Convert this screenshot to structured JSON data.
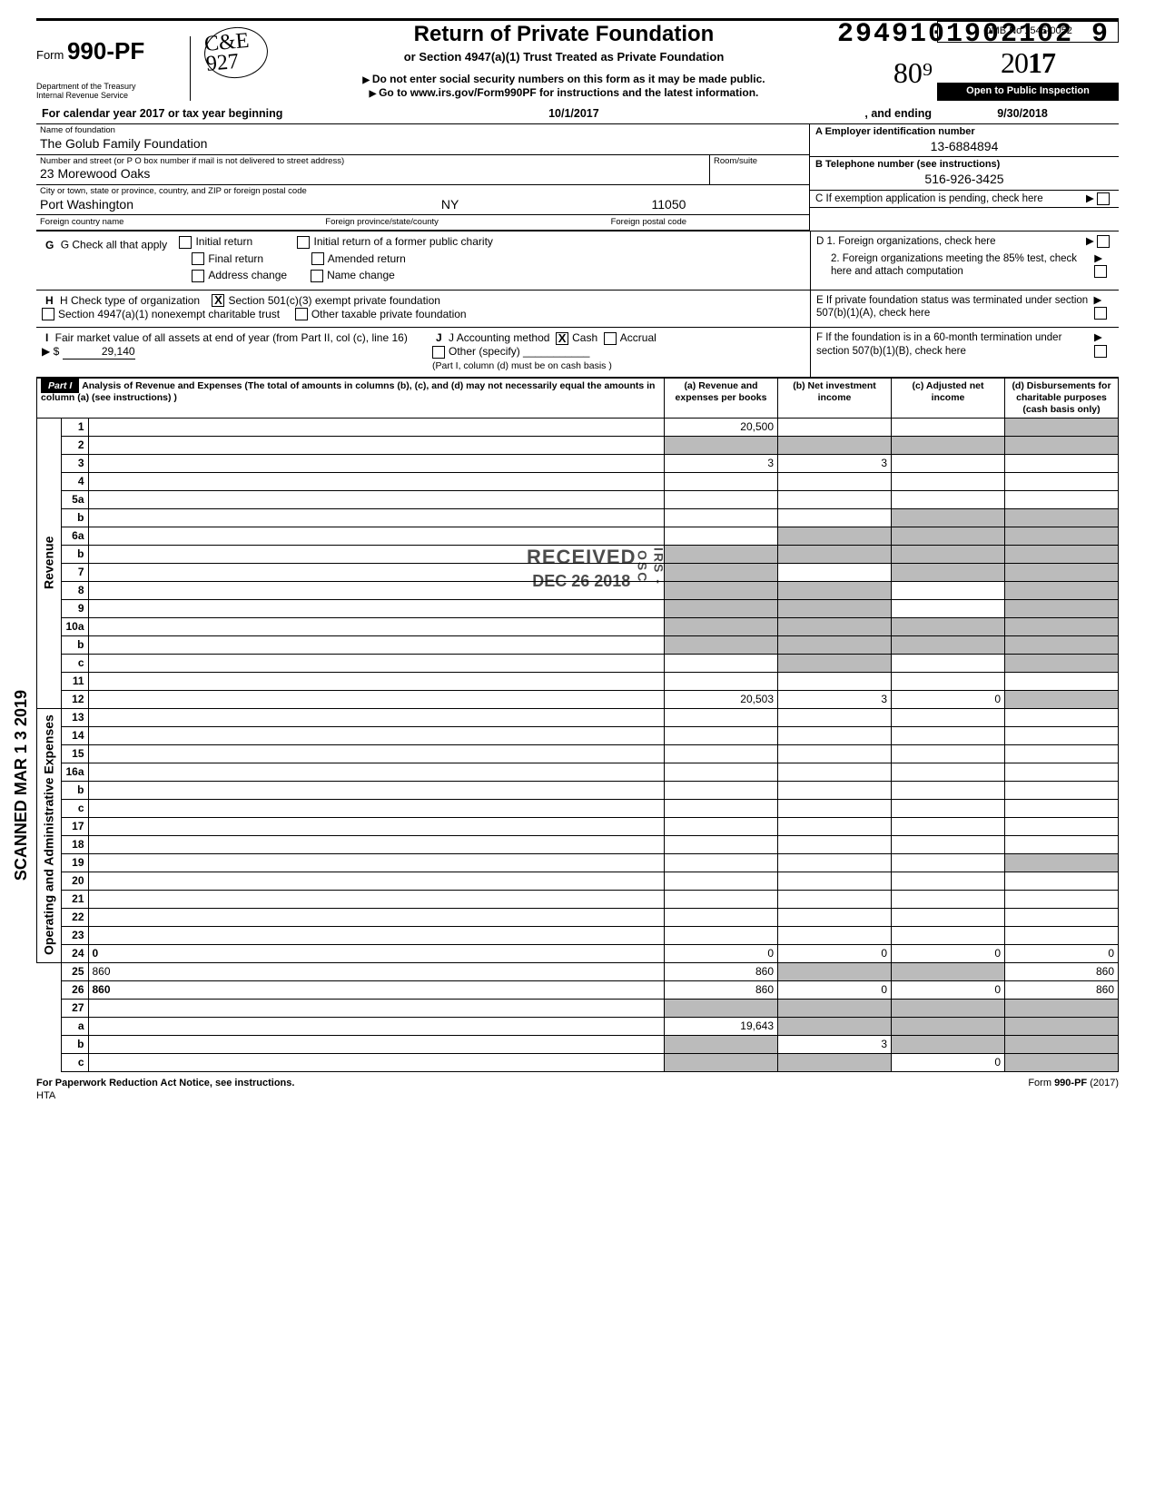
{
  "doc_number": "2949101902102  9",
  "form": {
    "prefix": "Form",
    "number": "990-PF",
    "dept_line1": "Department of the Treasury",
    "dept_line2": "Internal Revenue Service"
  },
  "title": {
    "main": "Return of Private Foundation",
    "sub1": "or Section 4947(a)(1) Trust Treated as Private Foundation",
    "sub2": "Do not enter social security numbers on this form as it may be made public.",
    "sub3": "Go to www.irs.gov/Form990PF for instructions and the latest information."
  },
  "year_block": {
    "omb": "OMB No 1545-0052",
    "year_outline": "20",
    "year_bold": "17",
    "open": "Open to Public Inspection"
  },
  "handwritten_initials": "C&E\n927",
  "handwritten_amount": "80⁹",
  "calendar_line": {
    "prefix": "For calendar year 2017 or tax year beginning",
    "begin": "10/1/2017",
    "mid": ", and ending",
    "end": "9/30/2018"
  },
  "name_of_foundation_label": "Name of foundation",
  "name_of_foundation": "The Golub Family Foundation",
  "addr_label": "Number and street (or P O  box number if mail is not delivered to street address)",
  "addr": "23 Morewood Oaks",
  "room_label": "Room/suite",
  "city_label": "City or town, state or province, country, and ZIP or foreign postal code",
  "city": "Port Washington",
  "state": "NY",
  "zip": "11050",
  "foreign_country_label": "Foreign country name",
  "foreign_province_label": "Foreign province/state/county",
  "foreign_postal_label": "Foreign postal code",
  "A_label": "A  Employer identification number",
  "A_value": "13-6884894",
  "B_label": "B  Telephone number (see instructions)",
  "B_value": "516-926-3425",
  "C_label": "C  If exemption application is pending, check here",
  "G_label": "G   Check all that apply",
  "G_opts": [
    "Initial return",
    "Final return",
    "Address change",
    "Initial return of a former public charity",
    "Amended return",
    "Name change"
  ],
  "H_label": "H   Check type of organization",
  "H_opts": [
    "Section 501(c)(3) exempt private foundation",
    "Section 4947(a)(1) nonexempt charitable trust",
    "Other taxable private foundation"
  ],
  "I_label1": "I    Fair market value of all assets at end of year (from Part II, col (c), line 16) ▶ $",
  "I_value": "29,140",
  "J_label": "J    Accounting method",
  "J_opts": [
    "Cash",
    "Accrual",
    "Other (specify)"
  ],
  "J_note": "(Part I, column (d) must be on cash basis )",
  "D1": "D  1. Foreign organizations, check here",
  "D2": "2. Foreign organizations meeting the 85% test, check here and attach computation",
  "E": "E  If private foundation status was terminated under section 507(b)(1)(A), check here",
  "F": "F  If the foundation is in a 60-month termination under section 507(b)(1)(B), check here",
  "part1_title": "Analysis of Revenue and Expenses (The total of amounts in columns (b), (c), and (d) may not necessarily equal the amounts in column (a) (see instructions) )",
  "cols": {
    "a": "(a) Revenue and expenses per books",
    "b": "(b) Net investment income",
    "c": "(c) Adjusted net income",
    "d": "(d) Disbursements for charitable purposes (cash basis only)"
  },
  "revenue_label": "Revenue",
  "opex_label": "Operating and Administrative Expenses",
  "rows": [
    {
      "n": "1",
      "d": "",
      "a": "20,500",
      "b": "",
      "c": "",
      "sd": true
    },
    {
      "n": "2",
      "d": "",
      "a": "",
      "b": "",
      "c": "",
      "shade_all": true
    },
    {
      "n": "3",
      "d": "",
      "a": "3",
      "b": "3",
      "c": ""
    },
    {
      "n": "4",
      "d": "",
      "a": "",
      "b": "",
      "c": ""
    },
    {
      "n": "5a",
      "d": "",
      "a": "",
      "b": "",
      "c": ""
    },
    {
      "n": "b",
      "d": "",
      "a": "",
      "b": "",
      "c": "",
      "sc": true,
      "sd": true
    },
    {
      "n": "6a",
      "d": "",
      "a": "",
      "b": "",
      "c": "",
      "sb": true,
      "sc": true,
      "sd": true
    },
    {
      "n": "b",
      "d": "",
      "a": "",
      "b": "",
      "c": "",
      "shade_all": true
    },
    {
      "n": "7",
      "d": "",
      "a": "",
      "b": "",
      "c": "",
      "sa": true,
      "sc": true,
      "sd": true
    },
    {
      "n": "8",
      "d": "",
      "a": "",
      "b": "",
      "c": "",
      "sa": true,
      "sb": true,
      "sd": true
    },
    {
      "n": "9",
      "d": "",
      "a": "",
      "b": "",
      "c": "",
      "sa": true,
      "sb": true,
      "sd": true
    },
    {
      "n": "10a",
      "d": "",
      "a": "",
      "b": "",
      "c": "",
      "shade_all": true
    },
    {
      "n": "b",
      "d": "",
      "a": "",
      "b": "",
      "c": "",
      "shade_all": true
    },
    {
      "n": "c",
      "d": "",
      "a": "",
      "b": "",
      "c": "",
      "sb": true,
      "sd": true
    },
    {
      "n": "11",
      "d": "",
      "a": "",
      "b": "",
      "c": ""
    },
    {
      "n": "12",
      "d": "",
      "a": "20,503",
      "b": "3",
      "c": "0",
      "bold": true,
      "sd": true
    },
    {
      "n": "13",
      "d": "",
      "a": "",
      "b": "",
      "c": ""
    },
    {
      "n": "14",
      "d": "",
      "a": "",
      "b": "",
      "c": ""
    },
    {
      "n": "15",
      "d": "",
      "a": "",
      "b": "",
      "c": ""
    },
    {
      "n": "16a",
      "d": "",
      "a": "",
      "b": "",
      "c": ""
    },
    {
      "n": "b",
      "d": "",
      "a": "",
      "b": "",
      "c": ""
    },
    {
      "n": "c",
      "d": "",
      "a": "",
      "b": "",
      "c": ""
    },
    {
      "n": "17",
      "d": "",
      "a": "",
      "b": "",
      "c": ""
    },
    {
      "n": "18",
      "d": "",
      "a": "",
      "b": "",
      "c": ""
    },
    {
      "n": "19",
      "d": "",
      "a": "",
      "b": "",
      "c": "",
      "sd": true
    },
    {
      "n": "20",
      "d": "",
      "a": "",
      "b": "",
      "c": ""
    },
    {
      "n": "21",
      "d": "",
      "a": "",
      "b": "",
      "c": ""
    },
    {
      "n": "22",
      "d": "",
      "a": "",
      "b": "",
      "c": ""
    },
    {
      "n": "23",
      "d": "",
      "a": "",
      "b": "",
      "c": ""
    },
    {
      "n": "24",
      "d": "0",
      "a": "0",
      "b": "0",
      "c": "0",
      "bold": true
    },
    {
      "n": "25",
      "d": "860",
      "a": "860",
      "b": "",
      "c": "",
      "sb": true,
      "sc": true
    },
    {
      "n": "26",
      "d": "860",
      "a": "860",
      "b": "0",
      "c": "0",
      "bold": true
    },
    {
      "n": "27",
      "d": "",
      "a": "",
      "b": "",
      "c": "",
      "shade_all": true
    },
    {
      "n": "a",
      "d": "",
      "a": "19,643",
      "b": "",
      "c": "",
      "bold": true,
      "sb": true,
      "sc": true,
      "sd": true
    },
    {
      "n": "b",
      "d": "",
      "a": "",
      "b": "3",
      "c": "",
      "bold": true,
      "sa": true,
      "sc": true,
      "sd": true
    },
    {
      "n": "c",
      "d": "",
      "a": "",
      "b": "",
      "c": "0",
      "bold": true,
      "sa": true,
      "sb": true,
      "sd": true
    }
  ],
  "stamp": {
    "l1": "RECEIVED",
    "l2": "DEC 26  2018",
    "l3": "IRS - OSC"
  },
  "scanned": "SCANNED   MAR 1 3 2019",
  "footer": {
    "left": "For Paperwork Reduction Act Notice, see instructions.",
    "hta": "HTA",
    "right": "Form 990-PF (2017)"
  }
}
